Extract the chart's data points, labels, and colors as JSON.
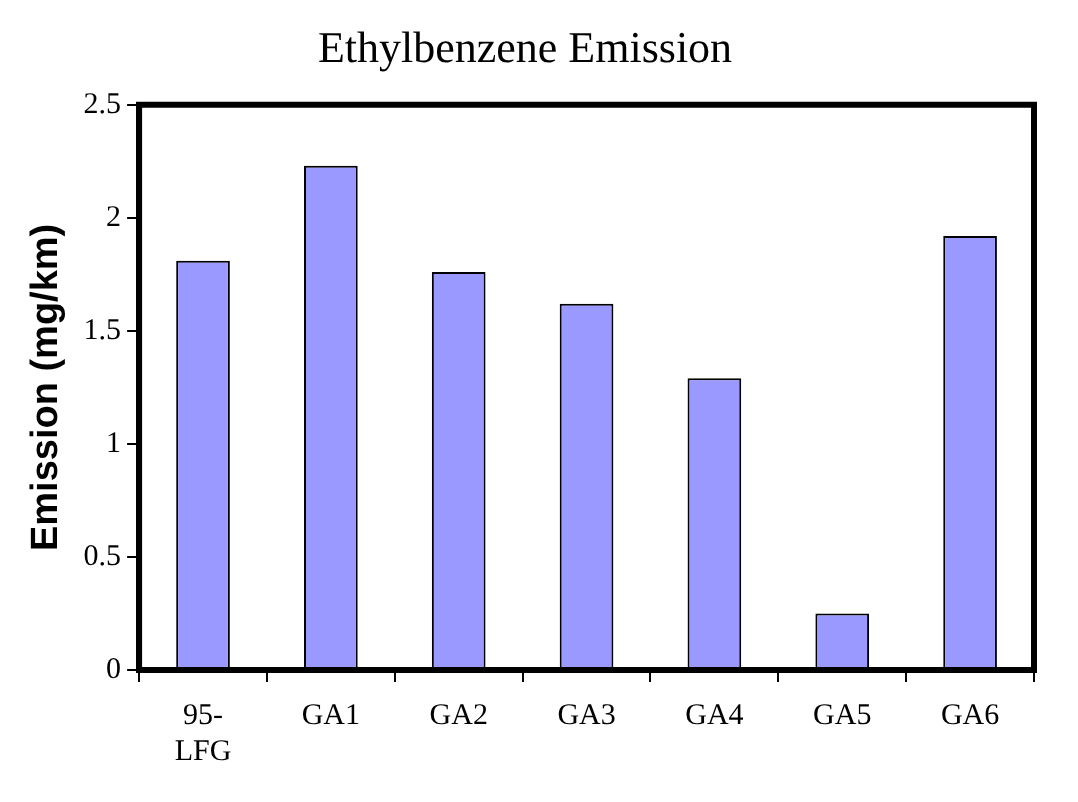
{
  "chart_data": {
    "type": "bar",
    "title": "Ethylbenzene Emission",
    "ylabel": "Emission (mg/km)",
    "categories": [
      "95-LFG",
      "GA1",
      "GA2",
      "GA3",
      "GA4",
      "GA5",
      "GA6"
    ],
    "values": [
      1.81,
      2.23,
      1.76,
      1.62,
      1.29,
      0.25,
      1.92
    ],
    "color": "#9999ff",
    "ylim": [
      0,
      2.5
    ],
    "yticks": [
      0,
      0.5,
      1,
      1.5,
      2,
      2.5
    ],
    "grid": false,
    "legend": false
  }
}
